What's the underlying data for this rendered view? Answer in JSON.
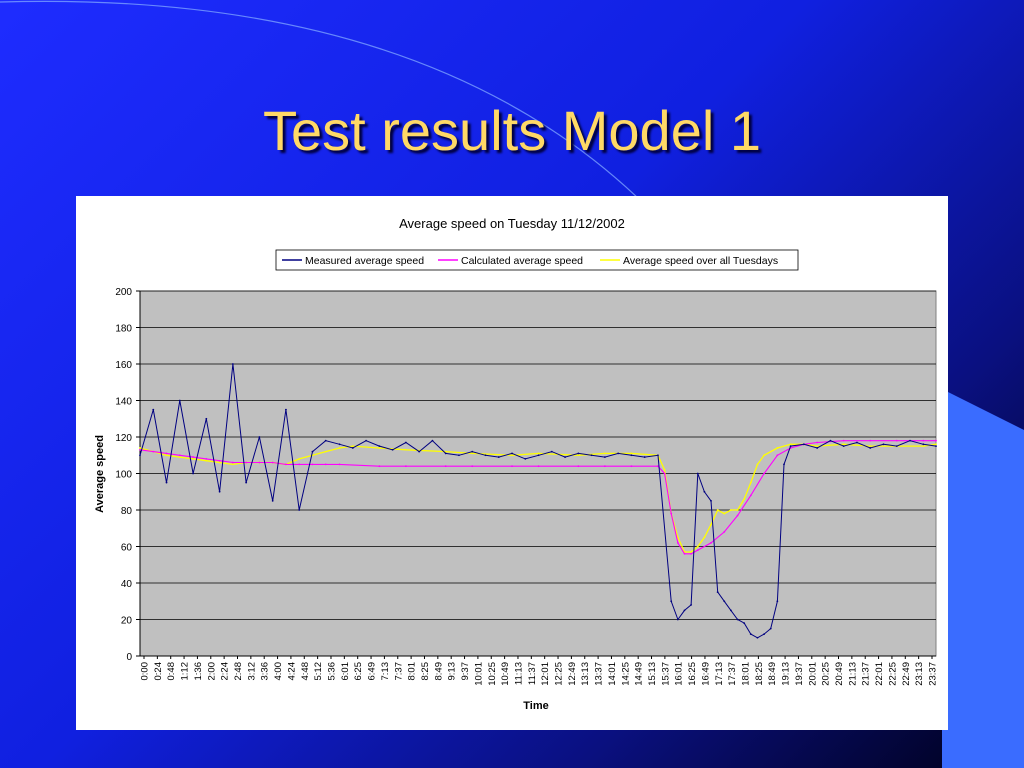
{
  "slide": {
    "title": "Test results Model 1"
  },
  "colors": {
    "measured": "#000080",
    "calculated": "#ff00ff",
    "tuesdays": "#ffff00",
    "plot_bg": "#c0c0c0"
  },
  "chart_data": {
    "type": "line",
    "title": "Average speed on Tuesday 11/12/2002",
    "xlabel": "Time",
    "ylabel": "Average speed",
    "ylim": [
      0,
      200
    ],
    "yticks": [
      0,
      20,
      40,
      60,
      80,
      100,
      120,
      140,
      160,
      180,
      200
    ],
    "grid": true,
    "legend_position": "top",
    "x_tick_labels": [
      "0:00",
      "0:24",
      "0:48",
      "1:12",
      "1:36",
      "2:00",
      "2:24",
      "2:48",
      "3:12",
      "3:36",
      "4:00",
      "4:24",
      "4:48",
      "5:12",
      "5:36",
      "6:01",
      "6:25",
      "6:49",
      "7:13",
      "7:37",
      "8:01",
      "8:25",
      "8:49",
      "9:13",
      "9:37",
      "10:01",
      "10:25",
      "10:49",
      "11:13",
      "11:37",
      "12:01",
      "12:25",
      "12:49",
      "13:13",
      "13:37",
      "14:01",
      "14:25",
      "14:49",
      "15:13",
      "15:37",
      "16:01",
      "16:25",
      "16:49",
      "17:13",
      "17:37",
      "18:01",
      "18:25",
      "18:49",
      "19:13",
      "19:37",
      "20:01",
      "20:25",
      "20:49",
      "21:13",
      "21:37",
      "22:01",
      "22:25",
      "22:49",
      "23:13",
      "23:37"
    ],
    "series": [
      {
        "name": "Measured average speed",
        "x": [
          "0:00",
          "0:24",
          "0:48",
          "1:12",
          "1:36",
          "2:00",
          "2:24",
          "2:48",
          "3:12",
          "3:36",
          "4:00",
          "4:24",
          "4:48",
          "5:12",
          "5:36",
          "6:01",
          "6:25",
          "6:49",
          "7:13",
          "7:37",
          "8:01",
          "8:25",
          "8:49",
          "9:13",
          "9:37",
          "10:01",
          "10:25",
          "10:49",
          "11:13",
          "11:37",
          "12:01",
          "12:25",
          "12:49",
          "13:13",
          "13:37",
          "14:01",
          "14:25",
          "14:49",
          "15:13",
          "15:37",
          "16:01",
          "16:13",
          "16:25",
          "16:37",
          "16:49",
          "17:01",
          "17:13",
          "17:25",
          "17:37",
          "17:49",
          "18:01",
          "18:13",
          "18:25",
          "18:37",
          "18:49",
          "19:01",
          "19:13",
          "19:25",
          "19:37",
          "20:01",
          "20:25",
          "20:49",
          "21:13",
          "21:37",
          "22:01",
          "22:25",
          "22:49",
          "23:13",
          "23:37",
          "23:59"
        ],
        "values": [
          110,
          135,
          95,
          140,
          100,
          130,
          90,
          160,
          95,
          120,
          85,
          135,
          80,
          112,
          118,
          116,
          114,
          118,
          115,
          113,
          117,
          112,
          118,
          111,
          110,
          112,
          110,
          109,
          111,
          108,
          110,
          112,
          109,
          111,
          110,
          109,
          111,
          110,
          109,
          110,
          30,
          20,
          25,
          28,
          100,
          90,
          85,
          35,
          30,
          25,
          20,
          18,
          12,
          10,
          12,
          15,
          30,
          105,
          115,
          116,
          114,
          118,
          115,
          117,
          114,
          116,
          115,
          118,
          116,
          115
        ]
      },
      {
        "name": "Calculated average speed",
        "x": [
          "0:00",
          "0:24",
          "0:48",
          "1:12",
          "1:36",
          "2:00",
          "2:24",
          "2:48",
          "3:12",
          "3:36",
          "4:00",
          "4:24",
          "4:48",
          "5:12",
          "5:36",
          "6:01",
          "7:13",
          "8:01",
          "9:13",
          "10:01",
          "11:13",
          "12:01",
          "13:13",
          "14:01",
          "14:49",
          "15:37",
          "15:49",
          "16:01",
          "16:13",
          "16:25",
          "16:37",
          "16:49",
          "17:13",
          "17:37",
          "18:01",
          "18:25",
          "18:49",
          "19:13",
          "19:37",
          "20:01",
          "20:25",
          "21:13",
          "22:01",
          "22:49",
          "23:37",
          "23:59"
        ],
        "values": [
          113,
          112,
          111,
          110,
          109,
          108,
          107,
          106,
          106,
          106,
          106,
          105,
          105,
          105,
          105,
          105,
          104,
          104,
          104,
          104,
          104,
          104,
          104,
          104,
          104,
          104,
          100,
          78,
          62,
          56,
          56,
          58,
          62,
          68,
          77,
          88,
          100,
          110,
          114,
          116,
          117,
          118,
          118,
          118,
          118,
          118
        ]
      },
      {
        "name": "Average speed over all Tuesdays",
        "x": [
          "0:00",
          "0:24",
          "0:48",
          "1:12",
          "1:36",
          "2:00",
          "2:24",
          "2:48",
          "3:12",
          "3:36",
          "4:00",
          "4:24",
          "4:48",
          "5:12",
          "5:36",
          "6:01",
          "6:25",
          "7:13",
          "8:01",
          "9:13",
          "10:01",
          "11:13",
          "12:01",
          "13:13",
          "14:01",
          "14:49",
          "15:37",
          "15:49",
          "16:01",
          "16:13",
          "16:25",
          "16:37",
          "16:49",
          "17:01",
          "17:13",
          "17:25",
          "17:37",
          "17:49",
          "18:01",
          "18:13",
          "18:25",
          "18:37",
          "18:49",
          "19:13",
          "19:37",
          "20:01",
          "20:25",
          "21:13",
          "22:01",
          "22:49",
          "23:37",
          "23:59"
        ],
        "values": [
          114,
          112,
          110,
          109,
          108,
          107,
          106,
          105,
          106,
          106,
          106,
          105,
          108,
          110,
          112,
          114,
          115,
          114,
          113,
          112,
          111,
          110,
          111,
          110,
          111,
          111,
          110,
          102,
          78,
          65,
          57,
          57,
          60,
          65,
          72,
          80,
          78,
          80,
          80,
          86,
          95,
          105,
          110,
          114,
          116,
          116,
          115,
          116,
          115,
          115,
          115,
          116
        ]
      }
    ]
  }
}
